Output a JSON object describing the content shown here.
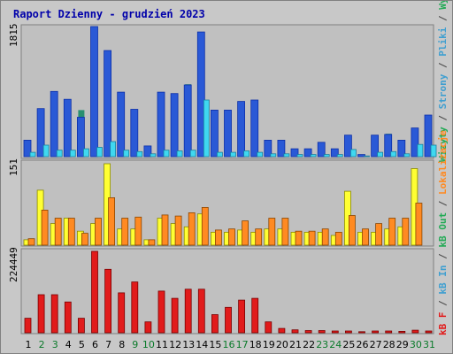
{
  "colors": {
    "visits": "#2a59d6",
    "visits_border": "#0c2fa8",
    "pages": "#2a8f70",
    "hits": "#3fd8f0",
    "bw_in": "#ffff33",
    "bw_out": "#ff8a22",
    "kb": "#e11b1b",
    "plot_bg": "#c0c0c0",
    "weekday_text": "#000000",
    "weekend_text": "#0a7a2a",
    "grid": "#9a9a9a"
  },
  "chart_data": {
    "type": "bar",
    "title": "Raport Dzienny -  grudzień  2023",
    "categories": [
      "1",
      "2",
      "3",
      "4",
      "5",
      "6",
      "7",
      "8",
      "9",
      "10",
      "11",
      "12",
      "13",
      "14",
      "15",
      "16",
      "17",
      "18",
      "19",
      "20",
      "21",
      "22",
      "23",
      "24",
      "25",
      "26",
      "27",
      "28",
      "29",
      "30",
      "31"
    ],
    "weekend_days": [
      "2",
      "3",
      "9",
      "10",
      "16",
      "17",
      "23",
      "24",
      "30",
      "31"
    ],
    "panels": [
      {
        "id": "visits_panel",
        "ymax_label": "1815",
        "ymax": 1815,
        "right_label_parts": [
          {
            "text": "Wizyty",
            "color": "#22aa55"
          },
          {
            "text": " / ",
            "color": "#444444"
          },
          {
            "text": "Strony",
            "color": "#3f9fd0"
          },
          {
            "text": " / ",
            "color": "#444444"
          },
          {
            "text": "Pliki",
            "color": "#3f9fd0"
          },
          {
            "text": " / ",
            "color": "#444444"
          },
          {
            "text": "Wywołania",
            "color": "#22aa55"
          }
        ],
        "series": [
          {
            "name": "Wizyty",
            "values": [
              230,
              670,
              910,
              800,
              550,
              1815,
              1480,
              900,
              660,
              150,
              900,
              880,
              1000,
              1740,
              650,
              650,
              770,
              790,
              230,
              230,
              110,
              110,
              200,
              110,
              300,
              30,
              300,
              310,
              230,
              400
            ]
          },
          {
            "name": "Strony",
            "values": [
              220,
              650,
              890,
              780,
              650,
              1800,
              1460,
              880,
              640,
              140,
              890,
              870,
              1010,
              1720,
              640,
              640,
              760,
              780,
              220,
              220,
              100,
              100,
              190,
              100,
              290,
              30,
              290,
              320,
              220,
              390
            ]
          },
          {
            "name": "Pliki",
            "values": [
              60,
              150,
              80,
              90,
              100,
              120,
              200,
              90,
              70,
              40,
              90,
              80,
              90,
              780,
              60,
              60,
              70,
              60,
              40,
              40,
              30,
              30,
              30,
              30,
              40,
              10,
              60,
              70,
              40,
              80
            ]
          },
          {
            "name": "Wywołania",
            "values": [
              60,
              160,
              90,
              90,
              110,
              130,
              210,
              90,
              70,
              40,
              90,
              80,
              90,
              790,
              60,
              60,
              80,
              60,
              40,
              40,
              30,
              30,
              30,
              30,
              100,
              10,
              60,
              70,
              40,
              170
            ]
          }
        ],
        "series_note": "day 31 rendered separately"
      },
      {
        "id": "bandwidth_panel",
        "ymax_label": "151",
        "ymax": 151
      },
      {
        "id": "kb_panel",
        "ymax_label": "224449",
        "ymax": 224449
      }
    ],
    "visits_day31": {
      "Wizyty": 580,
      "Strony": 570,
      "Pliki": 100,
      "Wywołania": 160
    },
    "bandwidth": {
      "series": [
        {
          "name": "kB In",
          "values": [
            10,
            102,
            40,
            50,
            26,
            40,
            151,
            30,
            30,
            10,
            50,
            40,
            34,
            58,
            24,
            24,
            28,
            24,
            30,
            30,
            24,
            24,
            24,
            18,
            100,
            24,
            24,
            30,
            34,
            142
          ]
        },
        {
          "name": "kB Out",
          "values": [
            12,
            65,
            50,
            50,
            22,
            50,
            88,
            50,
            52,
            10,
            56,
            54,
            60,
            70,
            28,
            30,
            45,
            30,
            50,
            50,
            26,
            26,
            30,
            24,
            55,
            30,
            40,
            50,
            50,
            78
          ]
        }
      ]
    },
    "kb": {
      "name": "kB F",
      "values": [
        40000,
        105000,
        105000,
        85000,
        40000,
        224449,
        175000,
        110000,
        140000,
        30000,
        115000,
        95000,
        120000,
        120000,
        50000,
        70000,
        90000,
        95000,
        30000,
        12000,
        8000,
        6000,
        6000,
        5000,
        5000,
        3000,
        5000,
        5000,
        4000,
        7000,
        5000
      ]
    },
    "right_label_bw_parts": [
      {
        "text": "kB F",
        "color": "#e11b1b"
      },
      {
        "text": " / ",
        "color": "#444444"
      },
      {
        "text": "kB In",
        "color": "#3f9fd0"
      },
      {
        "text": " / ",
        "color": "#444444"
      },
      {
        "text": "kB Out",
        "color": "#22aa55"
      },
      {
        "text": " / ",
        "color": "#444444"
      },
      {
        "text": "Lokalizacje",
        "color": "#ff8a22"
      }
    ]
  }
}
